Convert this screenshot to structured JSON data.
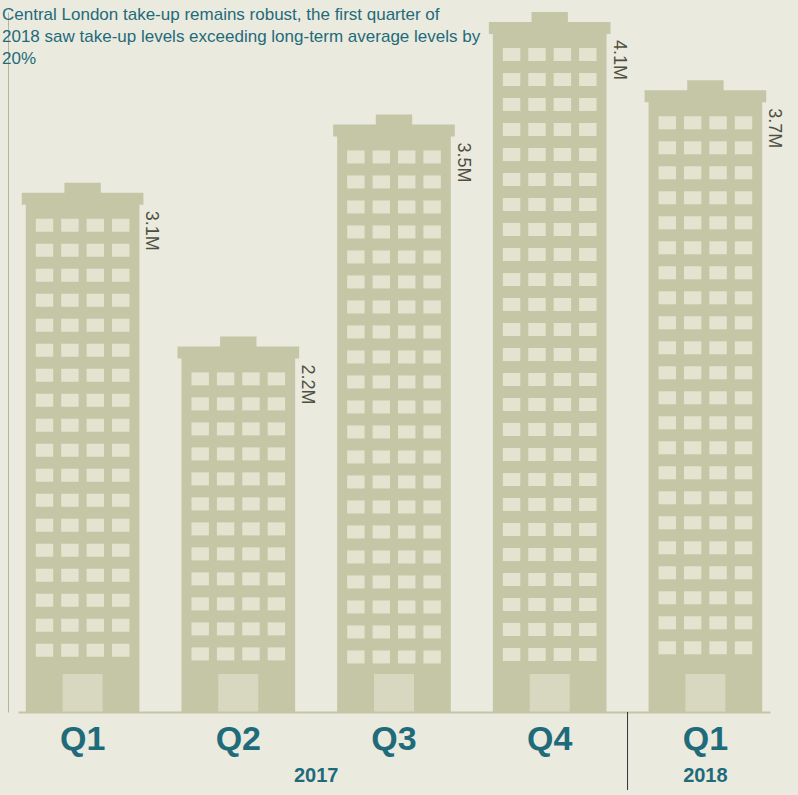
{
  "chart_data": {
    "type": "bar",
    "title": "Central London take-up remains robust, the first quarter of 2018 saw take-up levels exceeding long-term average levels by 20%",
    "categories": [
      "Q1",
      "Q2",
      "Q3",
      "Q4",
      "Q1"
    ],
    "values": [
      3.1,
      2.2,
      3.5,
      4.1,
      3.7
    ],
    "value_labels": [
      "3.1M",
      "2.2M",
      "3.5M",
      "4.1M",
      "3.7M"
    ],
    "groups": [
      {
        "label": "2017",
        "start": 0,
        "end": 3
      },
      {
        "label": "2018",
        "start": 4,
        "end": 4
      }
    ],
    "color": "#c5c6a6",
    "ylim": [
      0,
      4.1
    ],
    "data_labels": true,
    "tick_labels": "x"
  }
}
